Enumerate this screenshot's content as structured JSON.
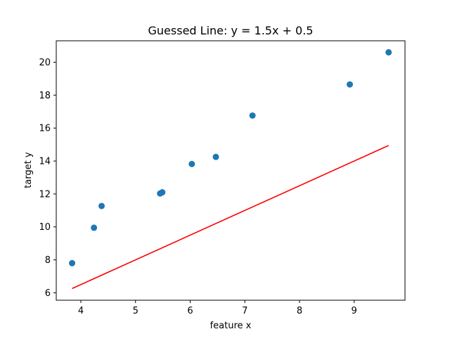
{
  "chart_data": {
    "type": "scatter",
    "title": "Guessed Line: y = 1.5x + 0.5",
    "xlabel": "feature x",
    "ylabel": "target y",
    "xlim": [
      3.55,
      9.93
    ],
    "ylim": [
      5.55,
      21.3
    ],
    "xticks": [
      4,
      5,
      6,
      7,
      8,
      9
    ],
    "yticks": [
      6,
      8,
      10,
      12,
      14,
      16,
      18,
      20
    ],
    "grid": false,
    "points": {
      "color": "#1f77b4",
      "x": [
        3.84,
        4.24,
        4.38,
        5.45,
        5.49,
        6.03,
        6.47,
        7.14,
        8.92,
        9.63
      ],
      "y": [
        7.8,
        9.95,
        11.27,
        12.03,
        12.1,
        13.82,
        14.25,
        16.76,
        18.65,
        20.6
      ]
    },
    "fit_line": {
      "color": "#ff0000",
      "slope": 1.5,
      "intercept": 0.5,
      "x_range": [
        3.84,
        9.63
      ]
    }
  }
}
